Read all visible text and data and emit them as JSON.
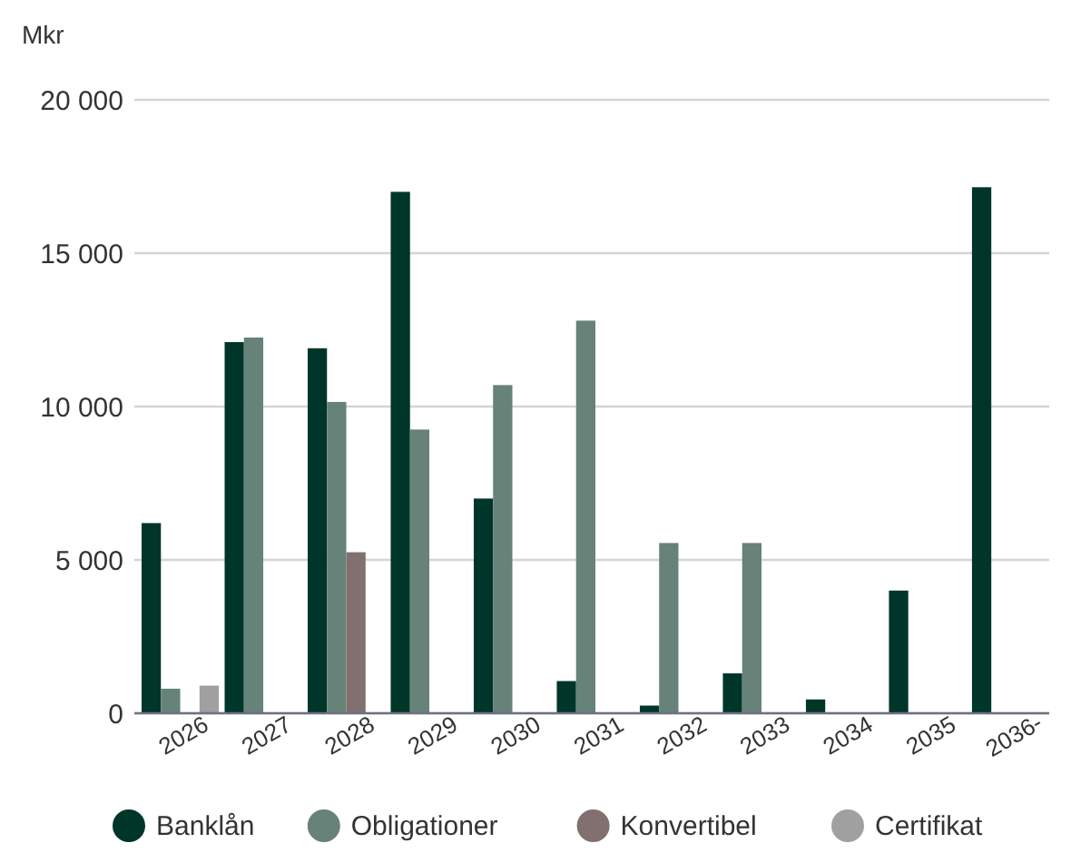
{
  "chart_data": {
    "type": "bar",
    "ylabel": "Mkr",
    "categories": [
      "2026",
      "2027",
      "2028",
      "2029",
      "2030",
      "2031",
      "2032",
      "2033",
      "2034",
      "2035",
      "2036-"
    ],
    "series": [
      {
        "name": "Banklån",
        "color": "#00352a",
        "values": [
          6200,
          12100,
          11900,
          17000,
          7000,
          1050,
          250,
          1300,
          450,
          4000,
          17150
        ]
      },
      {
        "name": "Obligationer",
        "color": "#668279",
        "values": [
          800,
          12250,
          10150,
          9250,
          10700,
          12800,
          5550,
          5550,
          null,
          null,
          null
        ]
      },
      {
        "name": "Konvertibel",
        "color": "#827070",
        "values": [
          null,
          null,
          5250,
          null,
          null,
          null,
          null,
          null,
          null,
          null,
          null
        ]
      },
      {
        "name": "Certifikat",
        "color": "#a0a0a0",
        "values": [
          900,
          null,
          null,
          null,
          null,
          null,
          null,
          null,
          null,
          null,
          null
        ]
      }
    ],
    "ylim": [
      0,
      20000
    ],
    "yticks": [
      {
        "value": 0,
        "label": "0"
      },
      {
        "value": 5000,
        "label": "5 000"
      },
      {
        "value": 10000,
        "label": "10 000"
      },
      {
        "value": 15000,
        "label": "15 000"
      },
      {
        "value": 20000,
        "label": "20 000"
      }
    ],
    "grid": "y",
    "legend": "bottom"
  }
}
